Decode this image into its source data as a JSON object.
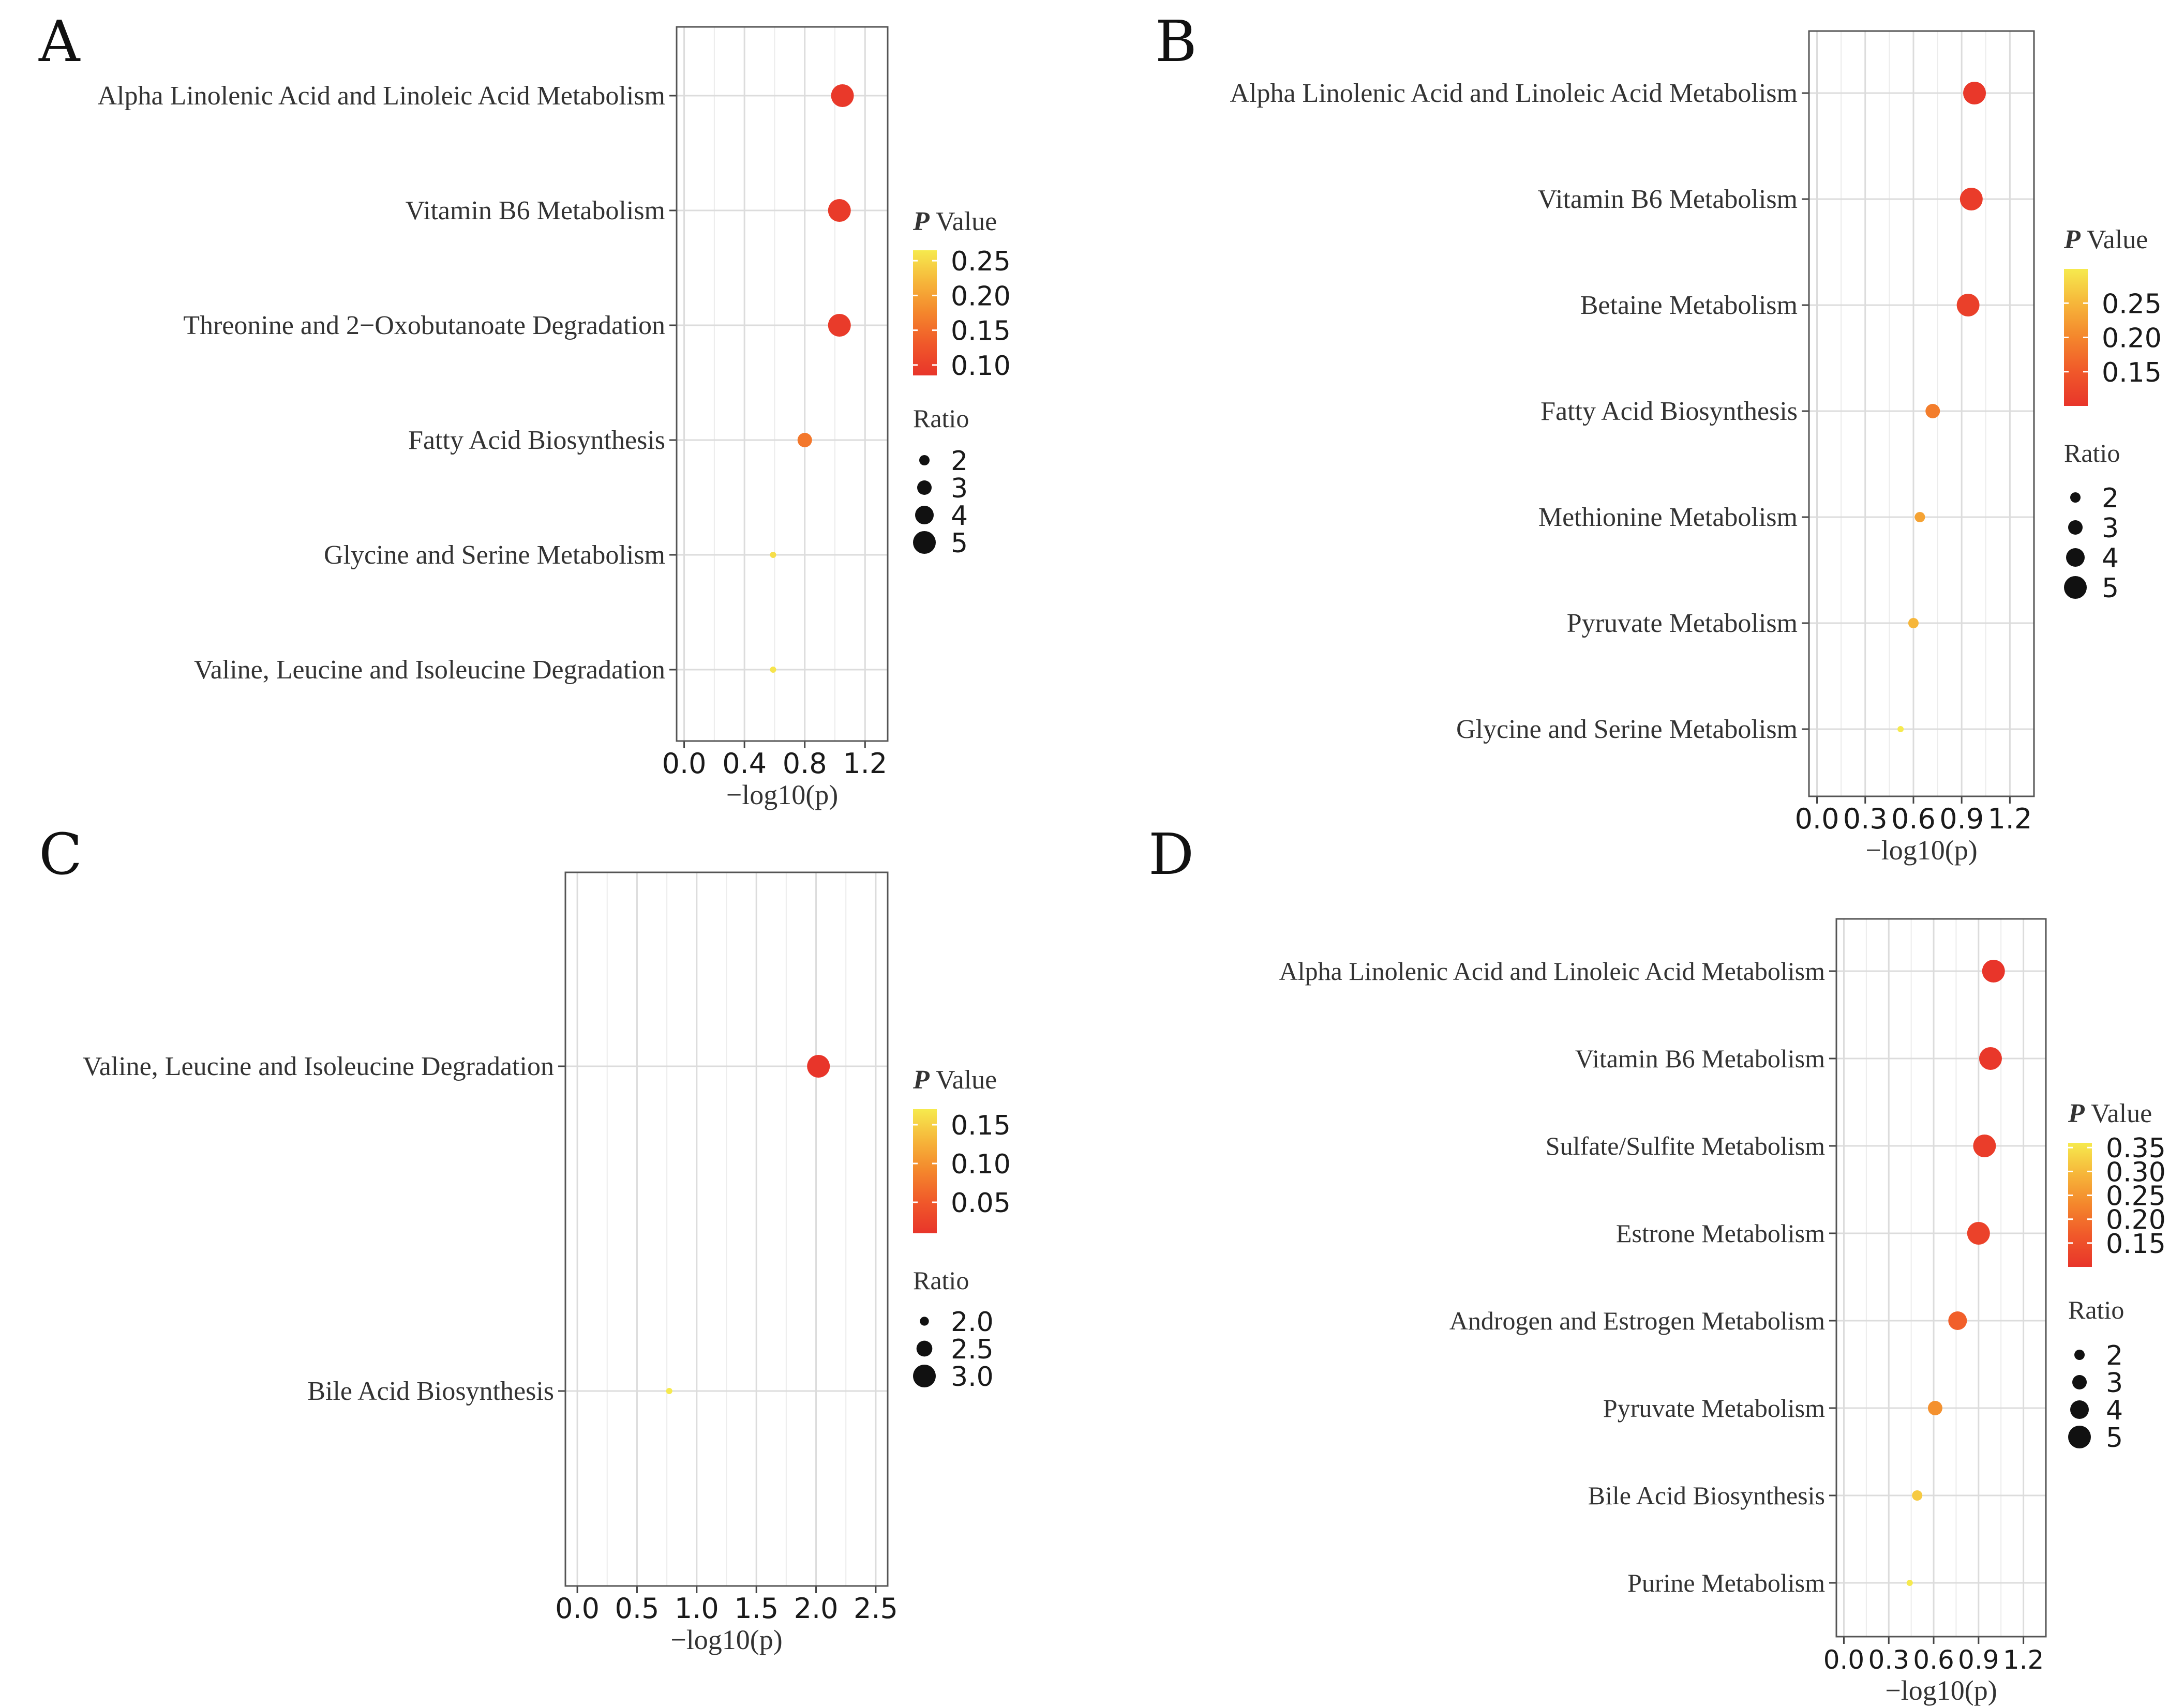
{
  "chart_data": [
    {
      "panel": "A",
      "type": "scatter",
      "xlabel": "−log10(p)",
      "xlim": [
        -0.05,
        1.35
      ],
      "xticks": [
        "0.0",
        "0.4",
        "0.8",
        "1.2"
      ],
      "tick_values": [
        0.0,
        0.4,
        0.8,
        1.2
      ],
      "categories": [
        "Alpha Linolenic Acid and Linoleic Acid Metabolism",
        "Vitamin B6 Metabolism",
        "Threonine and 2−Oxobutanoate Degradation",
        "Fatty Acid Biosynthesis",
        "Glycine and Serine Metabolism",
        "Valine, Leucine and Isoleucine Degradation"
      ],
      "x": [
        1.05,
        1.03,
        1.03,
        0.8,
        0.59,
        0.59
      ],
      "p_value": [
        0.09,
        0.093,
        0.093,
        0.16,
        0.255,
        0.26
      ],
      "ratio": [
        5,
        5,
        5,
        3,
        1,
        1
      ],
      "color_legend": {
        "title_italic": "P",
        "title_rest": " Value",
        "labels": [
          "0.25",
          "0.20",
          "0.15",
          "0.10"
        ],
        "values": [
          0.25,
          0.2,
          0.15,
          0.1
        ],
        "range": [
          0.085,
          0.265
        ]
      },
      "size_legend": {
        "title": "Ratio",
        "labels": [
          "2",
          "3",
          "4",
          "5"
        ],
        "values": [
          2,
          3,
          4,
          5
        ],
        "range": [
          1,
          5
        ]
      }
    },
    {
      "panel": "B",
      "type": "scatter",
      "xlabel": "−log10(p)",
      "xlim": [
        -0.05,
        1.35
      ],
      "xticks": [
        "0.0",
        "0.3",
        "0.6",
        "0.9",
        "1.2"
      ],
      "tick_values": [
        0.0,
        0.3,
        0.6,
        0.9,
        1.2
      ],
      "categories": [
        "Alpha Linolenic Acid and Linoleic Acid Metabolism",
        "Vitamin B6 Metabolism",
        "Betaine Metabolism",
        "Fatty Acid Biosynthesis",
        "Methionine Metabolism",
        "Pyruvate Metabolism",
        "Glycine and Serine Metabolism"
      ],
      "x": [
        0.98,
        0.96,
        0.94,
        0.72,
        0.64,
        0.6,
        0.52
      ],
      "p_value": [
        0.105,
        0.11,
        0.115,
        0.19,
        0.23,
        0.25,
        0.3
      ],
      "ratio": [
        5,
        5,
        5,
        3,
        2,
        2,
        1
      ],
      "color_legend": {
        "title_italic": "P",
        "title_rest": " Value",
        "labels": [
          "0.25",
          "0.20",
          "0.15"
        ],
        "values": [
          0.25,
          0.2,
          0.15
        ],
        "range": [
          0.1,
          0.3
        ]
      },
      "size_legend": {
        "title": "Ratio",
        "labels": [
          "2",
          "3",
          "4",
          "5"
        ],
        "values": [
          2,
          3,
          4,
          5
        ],
        "range": [
          1,
          5
        ]
      }
    },
    {
      "panel": "C",
      "type": "scatter",
      "xlabel": "−log10(p)",
      "xlim": [
        -0.1,
        2.6
      ],
      "xticks": [
        "0.0",
        "0.5",
        "1.0",
        "1.5",
        "2.0",
        "2.5"
      ],
      "tick_values": [
        0.0,
        0.5,
        1.0,
        1.5,
        2.0,
        2.5
      ],
      "categories": [
        "Valine, Leucine and Isoleucine Degradation",
        "Bile Acid Biosynthesis"
      ],
      "x": [
        2.02,
        0.77
      ],
      "p_value": [
        0.01,
        0.17
      ],
      "ratio": [
        3,
        1.8
      ],
      "color_legend": {
        "title_italic": "P",
        "title_rest": " Value",
        "labels": [
          "0.15",
          "0.10",
          "0.05"
        ],
        "values": [
          0.15,
          0.1,
          0.05
        ],
        "range": [
          0.01,
          0.17
        ]
      },
      "size_legend": {
        "title": "Ratio",
        "labels": [
          "2.0",
          "2.5",
          "3.0"
        ],
        "values": [
          2.0,
          2.5,
          3.0
        ],
        "range": [
          1.8,
          3.0
        ]
      }
    },
    {
      "panel": "D",
      "type": "scatter",
      "xlabel": "−log10(p)",
      "xlim": [
        -0.05,
        1.35
      ],
      "xticks": [
        "0.0",
        "0.3",
        "0.6",
        "0.9",
        "1.2"
      ],
      "tick_values": [
        0.0,
        0.3,
        0.6,
        0.9,
        1.2
      ],
      "categories": [
        "Alpha Linolenic Acid and Linoleic Acid Metabolism",
        "Vitamin B6 Metabolism",
        "Sulfate/Sulfite Metabolism",
        "Estrone Metabolism",
        "Androgen and Estrogen Metabolism",
        "Pyruvate Metabolism",
        "Bile Acid Biosynthesis",
        "Purine Metabolism"
      ],
      "x": [
        1.0,
        0.98,
        0.94,
        0.9,
        0.76,
        0.61,
        0.49,
        0.44
      ],
      "p_value": [
        0.1,
        0.105,
        0.115,
        0.125,
        0.175,
        0.245,
        0.32,
        0.36
      ],
      "ratio": [
        5,
        5,
        5,
        5,
        4,
        3,
        2,
        1
      ],
      "color_legend": {
        "title_italic": "P",
        "title_rest": " Value",
        "labels": [
          "0.35",
          "0.30",
          "0.25",
          "0.20",
          "0.15"
        ],
        "values": [
          0.35,
          0.3,
          0.25,
          0.2,
          0.15
        ],
        "range": [
          0.1,
          0.36
        ]
      },
      "size_legend": {
        "title": "Ratio",
        "labels": [
          "2",
          "3",
          "4",
          "5"
        ],
        "values": [
          2,
          3,
          4,
          5
        ],
        "range": [
          1,
          5
        ]
      }
    }
  ]
}
